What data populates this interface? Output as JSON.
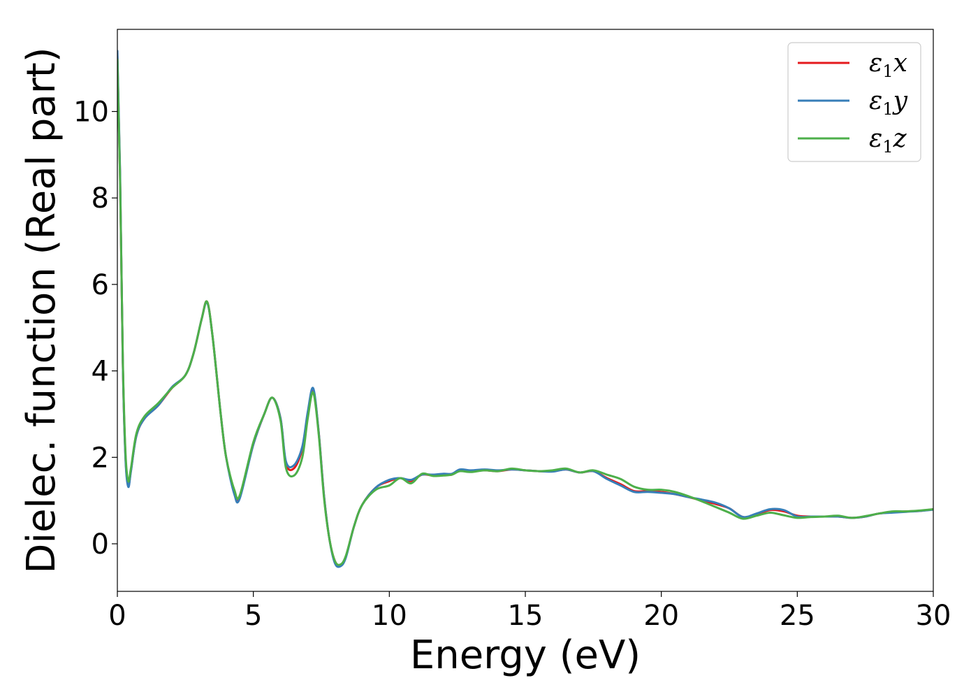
{
  "chart_data": {
    "type": "line",
    "title": "",
    "xlabel": "Energy (eV)",
    "ylabel": "Dielec. function (Real part)",
    "xlim": [
      0,
      30
    ],
    "ylim": [
      -1.1,
      11.9
    ],
    "xticks": [
      0,
      5,
      10,
      15,
      20,
      25,
      30
    ],
    "xtick_labels": [
      "0",
      "5",
      "10",
      "15",
      "20",
      "25",
      "30"
    ],
    "yticks": [
      0,
      2,
      4,
      6,
      8,
      10
    ],
    "ytick_labels": [
      "0",
      "2",
      "4",
      "6",
      "8",
      "10"
    ],
    "grid": false,
    "legend_position": "top-right",
    "series": [
      {
        "name": "ε1x",
        "legend_base": "ε",
        "legend_sub": "1",
        "legend_var": "x",
        "color": "#e41a1c",
        "x": [
          0.0,
          0.1,
          0.2,
          0.3,
          0.4,
          0.5,
          0.7,
          1.0,
          1.5,
          2.0,
          2.5,
          2.8,
          3.1,
          3.3,
          3.5,
          3.8,
          4.0,
          4.3,
          4.5,
          5.0,
          5.4,
          5.7,
          6.0,
          6.2,
          6.5,
          6.8,
          7.0,
          7.2,
          7.4,
          7.6,
          7.8,
          8.0,
          8.2,
          8.4,
          8.7,
          9.0,
          9.5,
          10.0,
          10.4,
          10.8,
          11.2,
          11.6,
          12.0,
          12.3,
          12.6,
          13.0,
          13.5,
          14.0,
          14.5,
          15.0,
          15.5,
          16.0,
          16.5,
          17.0,
          17.5,
          18.0,
          18.5,
          19.0,
          19.5,
          20.0,
          20.5,
          21.0,
          21.5,
          22.0,
          22.5,
          23.0,
          23.5,
          24.0,
          24.5,
          25.0,
          25.5,
          26.0,
          26.5,
          27.0,
          27.5,
          28.0,
          28.5,
          29.0,
          29.5,
          30.0
        ],
        "y": [
          11.3,
          8.5,
          4.2,
          2.0,
          1.35,
          1.7,
          2.5,
          2.9,
          3.2,
          3.6,
          3.9,
          4.4,
          5.2,
          5.6,
          4.8,
          3.0,
          2.0,
          1.2,
          1.1,
          2.3,
          3.0,
          3.38,
          2.9,
          1.85,
          1.75,
          2.2,
          3.0,
          3.55,
          2.6,
          1.1,
          0.1,
          -0.4,
          -0.5,
          -0.3,
          0.4,
          0.9,
          1.3,
          1.45,
          1.52,
          1.45,
          1.6,
          1.58,
          1.6,
          1.6,
          1.7,
          1.68,
          1.7,
          1.68,
          1.72,
          1.7,
          1.68,
          1.68,
          1.72,
          1.65,
          1.68,
          1.52,
          1.38,
          1.22,
          1.22,
          1.2,
          1.15,
          1.08,
          1.0,
          0.92,
          0.82,
          0.62,
          0.68,
          0.78,
          0.75,
          0.65,
          0.63,
          0.63,
          0.63,
          0.6,
          0.63,
          0.7,
          0.73,
          0.75,
          0.76,
          0.8
        ]
      },
      {
        "name": "ε1y",
        "legend_base": "ε",
        "legend_sub": "1",
        "legend_var": "y",
        "color": "#377eb8",
        "x": [
          0.0,
          0.1,
          0.2,
          0.3,
          0.4,
          0.5,
          0.7,
          1.0,
          1.5,
          2.0,
          2.5,
          2.8,
          3.1,
          3.3,
          3.5,
          3.8,
          4.0,
          4.3,
          4.5,
          5.0,
          5.4,
          5.7,
          6.0,
          6.2,
          6.5,
          6.8,
          7.0,
          7.2,
          7.4,
          7.6,
          7.8,
          8.0,
          8.2,
          8.4,
          8.7,
          9.0,
          9.5,
          10.0,
          10.4,
          10.8,
          11.2,
          11.6,
          12.0,
          12.3,
          12.6,
          13.0,
          13.5,
          14.0,
          14.5,
          15.0,
          15.5,
          16.0,
          16.5,
          17.0,
          17.5,
          18.0,
          18.5,
          19.0,
          19.5,
          20.0,
          20.5,
          21.0,
          21.5,
          22.0,
          22.5,
          23.0,
          23.5,
          24.0,
          24.5,
          25.0,
          25.5,
          26.0,
          26.5,
          27.0,
          27.5,
          28.0,
          28.5,
          29.0,
          29.5,
          30.0
        ],
        "y": [
          11.4,
          8.6,
          4.2,
          1.95,
          1.32,
          1.68,
          2.5,
          2.9,
          3.2,
          3.62,
          3.9,
          4.4,
          5.2,
          5.58,
          4.8,
          3.0,
          2.0,
          1.15,
          1.05,
          2.3,
          3.0,
          3.38,
          2.9,
          1.9,
          1.82,
          2.25,
          3.05,
          3.6,
          2.6,
          1.1,
          0.1,
          -0.45,
          -0.52,
          -0.32,
          0.4,
          0.9,
          1.3,
          1.48,
          1.52,
          1.48,
          1.6,
          1.6,
          1.62,
          1.62,
          1.72,
          1.7,
          1.72,
          1.7,
          1.72,
          1.7,
          1.68,
          1.67,
          1.72,
          1.65,
          1.68,
          1.5,
          1.35,
          1.2,
          1.2,
          1.18,
          1.15,
          1.08,
          1.02,
          0.95,
          0.82,
          0.62,
          0.7,
          0.8,
          0.78,
          0.63,
          0.63,
          0.63,
          0.63,
          0.6,
          0.63,
          0.7,
          0.72,
          0.74,
          0.76,
          0.79
        ]
      },
      {
        "name": "ε1z",
        "legend_base": "ε",
        "legend_sub": "1",
        "legend_var": "z",
        "color": "#4daf4a",
        "x": [
          0.0,
          0.1,
          0.2,
          0.3,
          0.4,
          0.5,
          0.7,
          1.0,
          1.5,
          2.0,
          2.5,
          2.8,
          3.1,
          3.3,
          3.5,
          3.8,
          4.0,
          4.3,
          4.5,
          5.0,
          5.4,
          5.7,
          6.0,
          6.2,
          6.5,
          6.8,
          7.0,
          7.2,
          7.4,
          7.6,
          7.8,
          8.0,
          8.2,
          8.4,
          8.7,
          9.0,
          9.5,
          10.0,
          10.4,
          10.8,
          11.2,
          11.6,
          12.0,
          12.3,
          12.6,
          13.0,
          13.5,
          14.0,
          14.5,
          15.0,
          15.5,
          16.0,
          16.5,
          17.0,
          17.5,
          18.0,
          18.5,
          19.0,
          19.5,
          20.0,
          20.5,
          21.0,
          21.5,
          22.0,
          22.5,
          23.0,
          23.5,
          24.0,
          24.5,
          25.0,
          25.5,
          26.0,
          26.5,
          27.0,
          27.5,
          28.0,
          28.5,
          29.0,
          29.5,
          30.0
        ],
        "y": [
          11.2,
          8.4,
          4.3,
          2.1,
          1.45,
          1.75,
          2.55,
          2.95,
          3.25,
          3.6,
          3.9,
          4.4,
          5.2,
          5.6,
          4.8,
          3.0,
          2.0,
          1.25,
          1.12,
          2.35,
          3.0,
          3.38,
          2.85,
          1.75,
          1.58,
          2.0,
          2.9,
          3.5,
          2.55,
          1.05,
          0.1,
          -0.4,
          -0.48,
          -0.28,
          0.4,
          0.9,
          1.25,
          1.35,
          1.52,
          1.4,
          1.62,
          1.57,
          1.58,
          1.6,
          1.68,
          1.66,
          1.7,
          1.68,
          1.74,
          1.7,
          1.68,
          1.7,
          1.74,
          1.65,
          1.7,
          1.6,
          1.5,
          1.32,
          1.25,
          1.25,
          1.2,
          1.1,
          0.98,
          0.85,
          0.72,
          0.58,
          0.65,
          0.72,
          0.66,
          0.6,
          0.62,
          0.63,
          0.65,
          0.6,
          0.64,
          0.7,
          0.75,
          0.75,
          0.77,
          0.8
        ]
      }
    ]
  }
}
